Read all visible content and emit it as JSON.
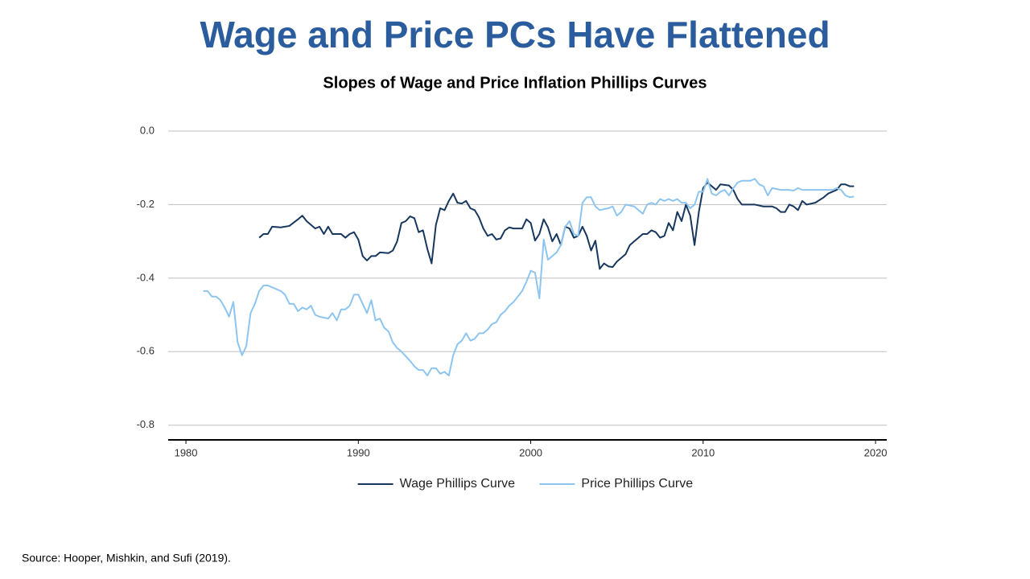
{
  "chart_data": {
    "type": "line",
    "title": "Wage and Price PCs Have Flattened",
    "subtitle": "Slopes of Wage and Price Inflation Phillips Curves",
    "xlim": [
      1978.97,
      2020.65
    ],
    "xticks": [
      1980,
      1990,
      2000,
      2010,
      2020
    ],
    "ylim": [
      -0.84,
      0
    ],
    "yticks": [
      {
        "value": 0,
        "label": "0.0"
      },
      -0.2,
      -0.4,
      -0.6,
      -0.8
    ],
    "grid": true,
    "legend": "bottom",
    "series": [
      {
        "name": "Wage Phillips Curve",
        "color": "#17375e",
        "x": [
          1984.25,
          1984.5,
          1984.75,
          1985,
          1985.5,
          1986,
          1986.5,
          1986.75,
          1987,
          1987.5,
          1987.75,
          1988,
          1988.25,
          1988.5,
          1989,
          1989.25,
          1989.5,
          1989.75,
          1990,
          1990.25,
          1990.5,
          1990.75,
          1991,
          1991.25,
          1991.75,
          1992,
          1992.25,
          1992.5,
          1992.75,
          1993,
          1993.25,
          1993.5,
          1993.75,
          1994,
          1994.25,
          1994.5,
          1994.75,
          1995,
          1995.25,
          1995.5,
          1995.75,
          1996,
          1996.25,
          1996.5,
          1996.75,
          1997,
          1997.25,
          1997.5,
          1997.75,
          1998,
          1998.25,
          1998.5,
          1998.75,
          1999,
          1999.5,
          1999.75,
          2000,
          2000.25,
          2000.5,
          2000.75,
          2001,
          2001.25,
          2001.5,
          2001.75,
          2002,
          2002.25,
          2002.5,
          2002.75,
          2003,
          2003.25,
          2003.5,
          2003.75,
          2004,
          2004.25,
          2004.5,
          2004.75,
          2005,
          2005.5,
          2005.75,
          2006,
          2006.5,
          2006.75,
          2007,
          2007.25,
          2007.5,
          2007.75,
          2008,
          2008.25,
          2008.5,
          2008.75,
          2009,
          2009.25,
          2009.5,
          2009.75,
          2010,
          2010.25,
          2010.5,
          2010.75,
          2011,
          2011.5,
          2011.75,
          2012,
          2012.25,
          2012.5,
          2013,
          2013.5,
          2014,
          2014.25,
          2014.5,
          2014.75,
          2015,
          2015.25,
          2015.5,
          2015.75,
          2016,
          2016.5,
          2017,
          2017.25,
          2017.75,
          2018,
          2018.25,
          2018.5,
          2018.75
        ],
        "values": [
          -0.29,
          -0.28,
          -0.28,
          -0.26,
          -0.262,
          -0.258,
          -0.24,
          -0.23,
          -0.245,
          -0.265,
          -0.26,
          -0.28,
          -0.26,
          -0.28,
          -0.28,
          -0.29,
          -0.28,
          -0.275,
          -0.295,
          -0.34,
          -0.352,
          -0.34,
          -0.34,
          -0.33,
          -0.332,
          -0.325,
          -0.3,
          -0.25,
          -0.245,
          -0.232,
          -0.237,
          -0.275,
          -0.27,
          -0.32,
          -0.36,
          -0.255,
          -0.21,
          -0.215,
          -0.19,
          -0.17,
          -0.195,
          -0.197,
          -0.19,
          -0.21,
          -0.215,
          -0.235,
          -0.265,
          -0.285,
          -0.28,
          -0.295,
          -0.292,
          -0.27,
          -0.262,
          -0.265,
          -0.265,
          -0.24,
          -0.25,
          -0.298,
          -0.28,
          -0.24,
          -0.262,
          -0.3,
          -0.28,
          -0.31,
          -0.26,
          -0.265,
          -0.29,
          -0.285,
          -0.26,
          -0.285,
          -0.325,
          -0.298,
          -0.375,
          -0.36,
          -0.368,
          -0.37,
          -0.355,
          -0.335,
          -0.31,
          -0.3,
          -0.28,
          -0.28,
          -0.27,
          -0.275,
          -0.29,
          -0.285,
          -0.25,
          -0.27,
          -0.22,
          -0.245,
          -0.2,
          -0.23,
          -0.31,
          -0.22,
          -0.155,
          -0.14,
          -0.15,
          -0.16,
          -0.145,
          -0.148,
          -0.16,
          -0.185,
          -0.2,
          -0.2,
          -0.2,
          -0.205,
          -0.205,
          -0.21,
          -0.22,
          -0.22,
          -0.2,
          -0.205,
          -0.215,
          -0.19,
          -0.2,
          -0.195,
          -0.18,
          -0.17,
          -0.16,
          -0.145,
          -0.145,
          -0.15,
          -0.15
        ]
      },
      {
        "name": "Price Phillips Curve",
        "color": "#8ec5f0",
        "x": [
          1981,
          1981.25,
          1981.5,
          1981.75,
          1982,
          1982.25,
          1982.5,
          1982.75,
          1983,
          1983.25,
          1983.5,
          1983.75,
          1984,
          1984.25,
          1984.5,
          1984.75,
          1985,
          1985.5,
          1985.75,
          1986,
          1986.25,
          1986.5,
          1986.75,
          1987,
          1987.25,
          1987.5,
          1987.75,
          1988.25,
          1988.5,
          1988.75,
          1989,
          1989.25,
          1989.5,
          1989.75,
          1990,
          1990.5,
          1990.75,
          1991,
          1991.25,
          1991.5,
          1991.75,
          1992,
          1992.25,
          1992.5,
          1993,
          1993.25,
          1993.5,
          1993.75,
          1994,
          1994.25,
          1994.5,
          1994.75,
          1995,
          1995.25,
          1995.5,
          1995.75,
          1996,
          1996.25,
          1996.5,
          1996.75,
          1997,
          1997.25,
          1997.5,
          1997.75,
          1998,
          1998.25,
          1998.5,
          1998.75,
          1999,
          1999.25,
          1999.5,
          1999.75,
          2000,
          2000.25,
          2000.5,
          2000.75,
          2001,
          2001.25,
          2001.5,
          2001.75,
          2002,
          2002.25,
          2002.5,
          2002.75,
          2003,
          2003.25,
          2003.5,
          2003.75,
          2004,
          2004.5,
          2004.75,
          2005,
          2005.25,
          2005.5,
          2006,
          2006.25,
          2006.5,
          2006.75,
          2007,
          2007.25,
          2007.5,
          2007.75,
          2008,
          2008.25,
          2008.5,
          2008.75,
          2009,
          2009.25,
          2009.5,
          2009.75,
          2010,
          2010.25,
          2010.5,
          2010.75,
          2011,
          2011.25,
          2011.5,
          2011.75,
          2012,
          2012.25,
          2012.75,
          2013,
          2013.25,
          2013.5,
          2013.75,
          2014,
          2014.5,
          2015,
          2015.25,
          2015.5,
          2015.75,
          2016,
          2017,
          2017.5,
          2017.75,
          2018,
          2018.25,
          2018.5,
          2018.75
        ],
        "values": [
          -0.435,
          -0.435,
          -0.45,
          -0.45,
          -0.46,
          -0.48,
          -0.505,
          -0.465,
          -0.575,
          -0.61,
          -0.585,
          -0.495,
          -0.47,
          -0.435,
          -0.42,
          -0.42,
          -0.425,
          -0.435,
          -0.445,
          -0.47,
          -0.47,
          -0.49,
          -0.48,
          -0.485,
          -0.475,
          -0.5,
          -0.505,
          -0.51,
          -0.495,
          -0.515,
          -0.485,
          -0.485,
          -0.475,
          -0.445,
          -0.445,
          -0.495,
          -0.46,
          -0.515,
          -0.51,
          -0.535,
          -0.545,
          -0.575,
          -0.59,
          -0.6,
          -0.625,
          -0.64,
          -0.65,
          -0.65,
          -0.665,
          -0.645,
          -0.645,
          -0.66,
          -0.655,
          -0.665,
          -0.61,
          -0.58,
          -0.57,
          -0.55,
          -0.57,
          -0.565,
          -0.55,
          -0.55,
          -0.54,
          -0.525,
          -0.52,
          -0.5,
          -0.49,
          -0.475,
          -0.465,
          -0.45,
          -0.435,
          -0.41,
          -0.38,
          -0.385,
          -0.455,
          -0.295,
          -0.35,
          -0.34,
          -0.33,
          -0.31,
          -0.26,
          -0.245,
          -0.28,
          -0.285,
          -0.195,
          -0.18,
          -0.18,
          -0.205,
          -0.215,
          -0.21,
          -0.205,
          -0.23,
          -0.22,
          -0.2,
          -0.205,
          -0.215,
          -0.225,
          -0.2,
          -0.195,
          -0.2,
          -0.185,
          -0.19,
          -0.185,
          -0.19,
          -0.185,
          -0.195,
          -0.195,
          -0.21,
          -0.2,
          -0.165,
          -0.165,
          -0.13,
          -0.17,
          -0.175,
          -0.165,
          -0.16,
          -0.175,
          -0.155,
          -0.14,
          -0.135,
          -0.135,
          -0.13,
          -0.145,
          -0.15,
          -0.175,
          -0.155,
          -0.16,
          -0.16,
          -0.162,
          -0.155,
          -0.16,
          -0.16,
          -0.16,
          -0.16,
          -0.155,
          -0.16,
          -0.175,
          -0.18,
          -0.178
        ]
      }
    ]
  },
  "source": "Source: Hooper, Mishkin, and Sufi (2019)."
}
